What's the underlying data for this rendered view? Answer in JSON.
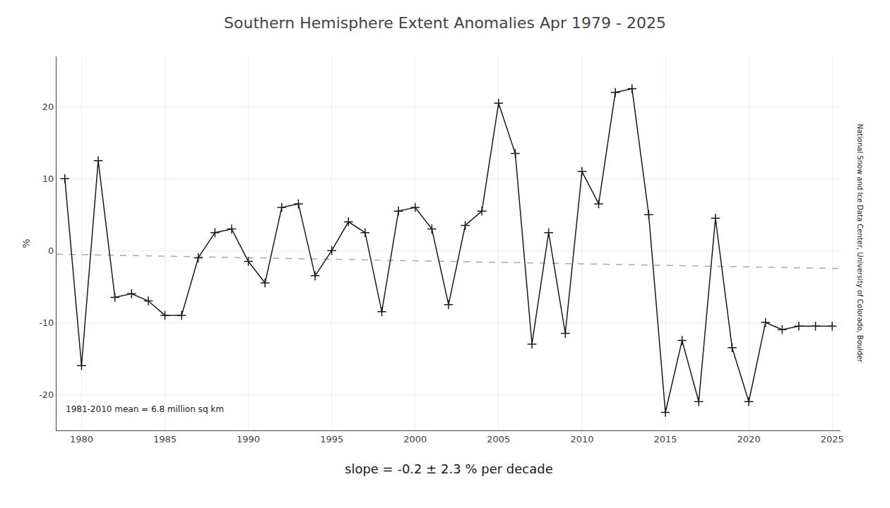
{
  "chart_data": {
    "type": "line",
    "title": "Southern Hemisphere Extent Anomalies Apr 1979 - 2025",
    "ylabel": "%",
    "annotations": [
      "1981-2010 mean = 6.8 million sq km",
      "slope = -0.2 ± 2.3 % per decade",
      "National Snow and Ice Data Center, University of Colorado, Boulder"
    ],
    "series": [
      {
        "x": [
          1979,
          1980,
          1981,
          1982,
          1983,
          1984,
          1985,
          1986,
          1987,
          1988,
          1989,
          1990,
          1991,
          1992,
          1993,
          1994,
          1995,
          1996,
          1997,
          1998,
          1999,
          2000,
          2001,
          2002,
          2003,
          2004,
          2005,
          2006,
          2007,
          2008,
          2009,
          2010,
          2011,
          2012,
          2013,
          2014,
          2015,
          2016,
          2017,
          2018,
          2019,
          2020,
          2021,
          2022,
          2023,
          2024,
          2025
        ],
        "values": [
          10.0,
          -16.0,
          12.5,
          -6.5,
          -6.0,
          -7.0,
          -9.0,
          -9.0,
          -1.0,
          2.5,
          3.0,
          -1.5,
          -4.5,
          6.0,
          6.5,
          -3.5,
          0.0,
          4.0,
          2.5,
          -8.5,
          5.5,
          6.0,
          3.0,
          -7.5,
          3.5,
          5.5,
          20.5,
          13.5,
          -13.0,
          2.5,
          -11.5,
          11.0,
          6.5,
          22.0,
          22.5,
          5.0,
          -22.5,
          -12.5,
          -21.0,
          4.5,
          -13.5,
          -21.0,
          -10.0,
          -11.0,
          -10.5,
          -10.5,
          -10.5
        ],
        "color": "#1a1a1a",
        "marker": "plus",
        "line_style": "solid"
      },
      {
        "x": [
          1978.5,
          2025.5
        ],
        "values": [
          -0.5,
          -2.5
        ],
        "color": "#aaaaaa",
        "line_style": "dashed"
      }
    ],
    "xlim": [
      1978.5,
      2025.5
    ],
    "ylim": [
      -25,
      27
    ],
    "xticks": [
      1980,
      1985,
      1990,
      1995,
      2000,
      2005,
      2010,
      2015,
      2020,
      2025
    ],
    "yticks": [
      -20,
      -10,
      0,
      10,
      20
    ],
    "grid": true
  }
}
